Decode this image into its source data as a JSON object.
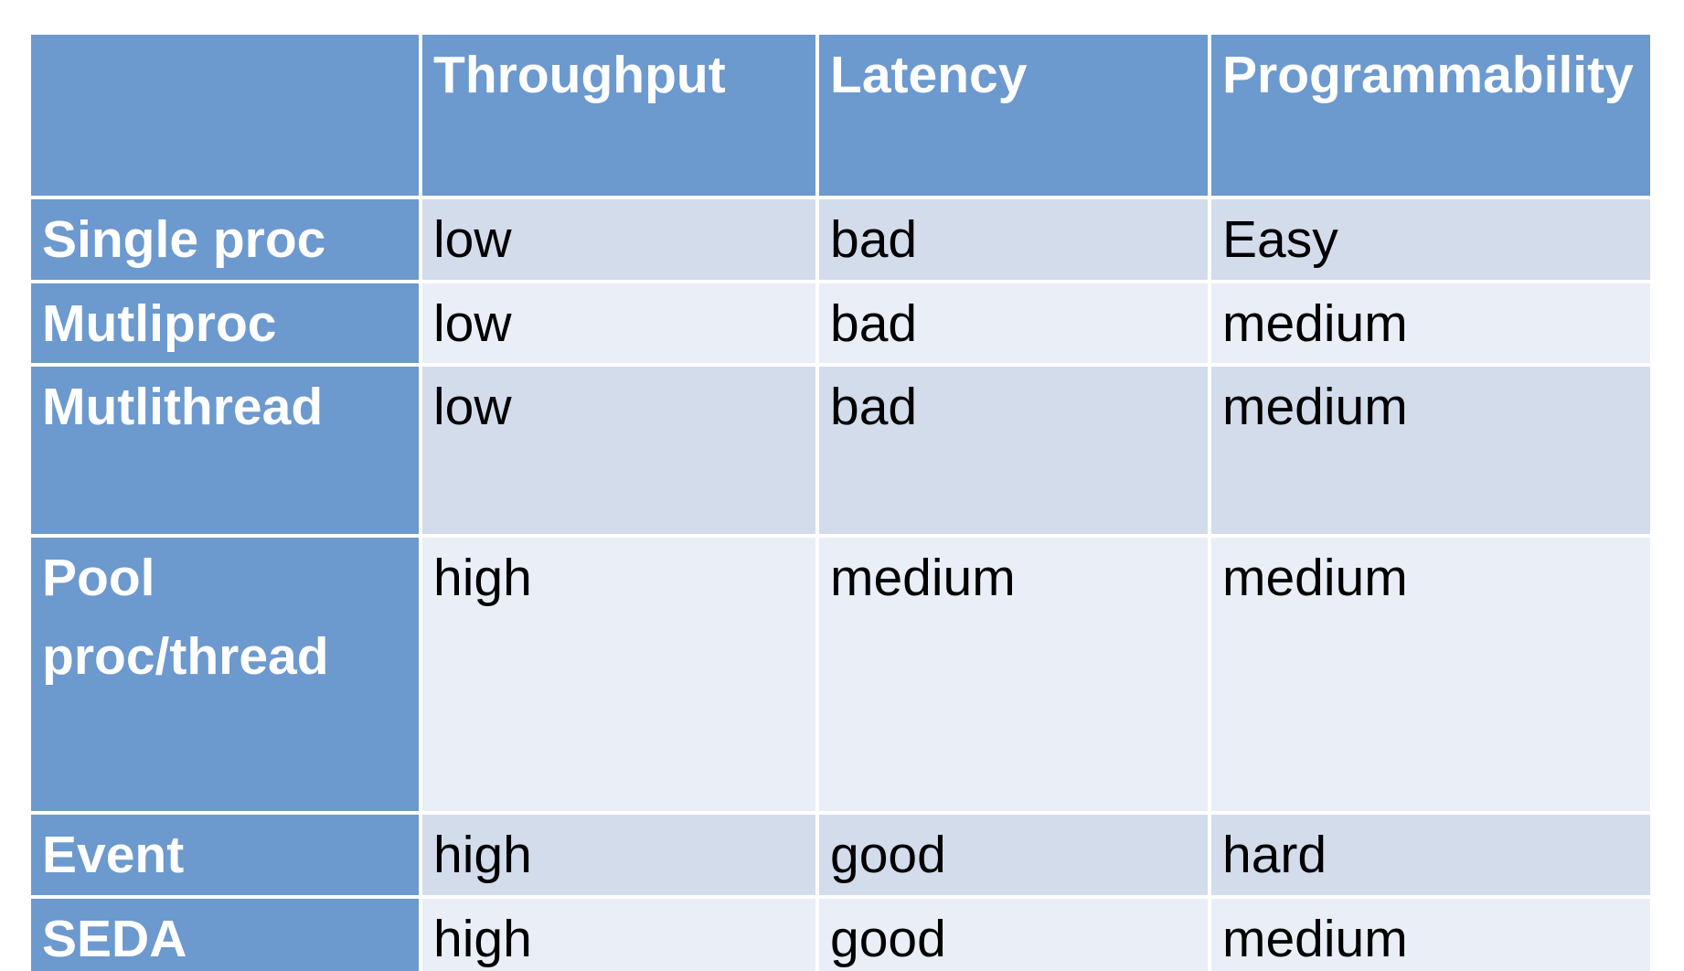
{
  "chart_data": {
    "type": "table",
    "title": "",
    "columns": [
      "",
      "Throughput",
      "Latency",
      "Programmability"
    ],
    "rows": [
      {
        "label": "Single proc",
        "values": [
          "low",
          "bad",
          "Easy"
        ]
      },
      {
        "label": "Mutliproc",
        "values": [
          "low",
          "bad",
          "medium"
        ]
      },
      {
        "label": "Mutlithread",
        "values": [
          "low",
          "bad",
          "medium"
        ]
      },
      {
        "label": "Pool proc/thread",
        "values": [
          "high",
          "medium",
          "medium"
        ]
      },
      {
        "label": "Event",
        "values": [
          "high",
          "good",
          "hard"
        ]
      },
      {
        "label": "SEDA",
        "values": [
          "high",
          "good",
          "medium"
        ]
      }
    ],
    "layout": {
      "header_position": "top-and-left",
      "row_banding": true
    }
  },
  "colors": {
    "header_blue": "#6c99ce",
    "band_dark": "#d3dceb",
    "band_light": "#e9eef7",
    "header_text": "#ffffff",
    "body_text": "#000000",
    "grid_gap": "#ffffff",
    "page_background": "#ffffff"
  }
}
